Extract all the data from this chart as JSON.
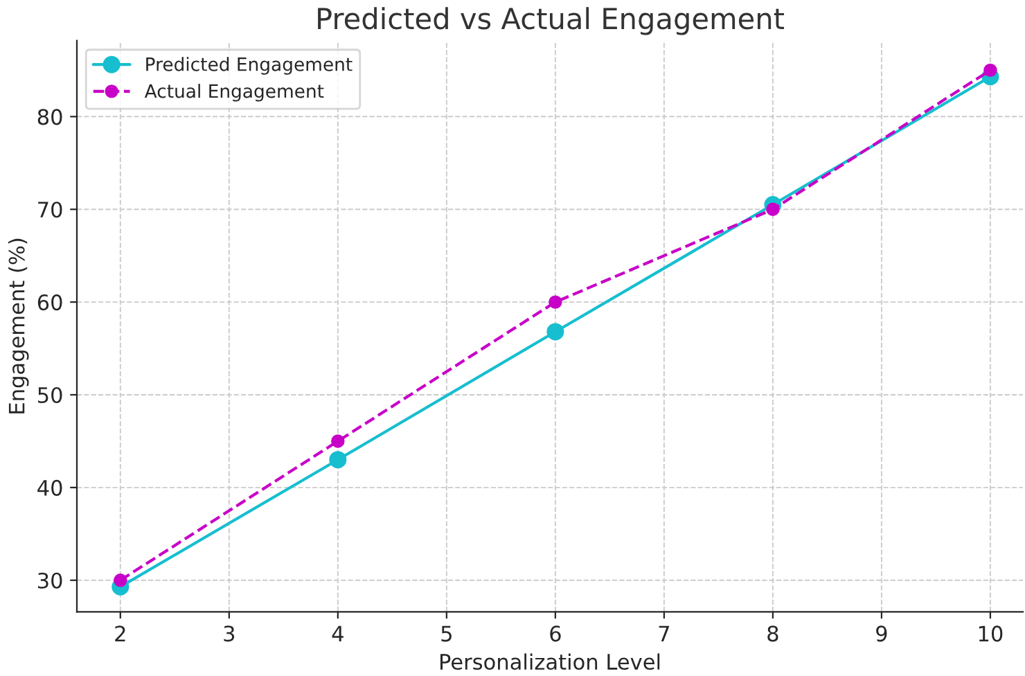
{
  "chart_data": {
    "type": "line",
    "title": "Predicted vs Actual Engagement",
    "xlabel": "Personalization Level",
    "ylabel": "Engagement (%)",
    "x": [
      2,
      4,
      6,
      8,
      10
    ],
    "series": [
      {
        "name": "Predicted Engagement",
        "color": "#17becf",
        "values": [
          29.3,
          43.0,
          56.8,
          70.5,
          84.3
        ],
        "line_style": "solid"
      },
      {
        "name": "Actual Engagement",
        "color": "#c800c8",
        "values": [
          30,
          45,
          60,
          70,
          85
        ],
        "line_style": "dashed"
      }
    ],
    "xlim": [
      1.6,
      10.3
    ],
    "ylim": [
      26.6,
      88.2
    ],
    "xticks": [
      2,
      3,
      4,
      5,
      6,
      7,
      8,
      9,
      10
    ],
    "yticks": [
      30,
      40,
      50,
      60,
      70,
      80
    ],
    "grid": true,
    "legend": "top left",
    "marker": "circle"
  }
}
